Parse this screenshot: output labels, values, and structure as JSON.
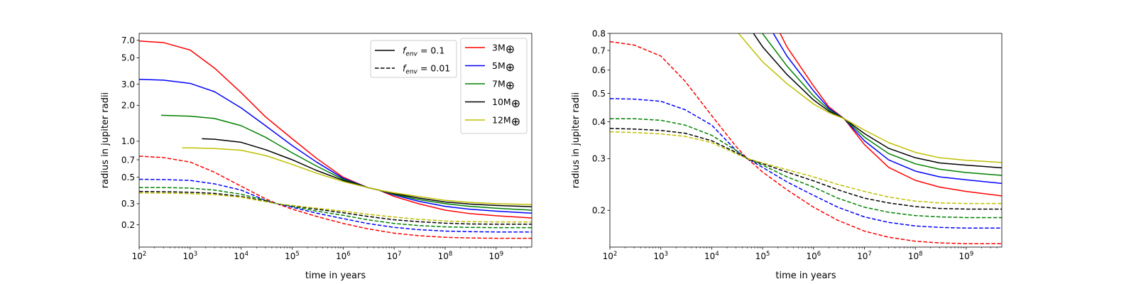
{
  "chart_data": [
    {
      "type": "line",
      "xlabel": "time in years",
      "ylabel": "radius in jupiter radii",
      "xscale": "log",
      "yscale": "log",
      "xlim": [
        100,
        5000000000
      ],
      "ylim": [
        0.13,
        8.0
      ],
      "xticks": [
        {
          "value": 100,
          "base": "10",
          "exp": "2"
        },
        {
          "value": 1000,
          "base": "10",
          "exp": "3"
        },
        {
          "value": 10000,
          "base": "10",
          "exp": "4"
        },
        {
          "value": 100000,
          "base": "10",
          "exp": "5"
        },
        {
          "value": 1000000,
          "base": "10",
          "exp": "6"
        },
        {
          "value": 10000000,
          "base": "10",
          "exp": "7"
        },
        {
          "value": 100000000,
          "base": "10",
          "exp": "8"
        },
        {
          "value": 1000000000,
          "base": "10",
          "exp": "9"
        }
      ],
      "yticks": [
        {
          "value": 7.0,
          "label": "7.0"
        },
        {
          "value": 5.0,
          "label": "5.0"
        },
        {
          "value": 3.0,
          "label": "3.0"
        },
        {
          "value": 2.0,
          "label": "2.0"
        },
        {
          "value": 1.0,
          "label": "1.0"
        },
        {
          "value": 0.7,
          "label": "0.7"
        },
        {
          "value": 0.5,
          "label": "0.5"
        },
        {
          "value": 0.3,
          "label": "0.3"
        },
        {
          "value": 0.2,
          "label": "0.2"
        }
      ],
      "legend_style": {
        "placement": "upper-middle-right",
        "entries": [
          {
            "name": "f_env = 0.1",
            "base": "f",
            "sub": "env",
            "rest": " = 0.1",
            "dash": "solid"
          },
          {
            "name": "f_env = 0.01",
            "base": "f",
            "sub": "env",
            "rest": " = 0.01",
            "dash": "dashed"
          }
        ]
      },
      "legend_mass": {
        "placement": "upper-right",
        "entries": [
          {
            "name": "3M⊕",
            "prefix": "3M",
            "symbol": "⊕",
            "color": "#ff0000"
          },
          {
            "name": "5M⊕",
            "prefix": "5M",
            "symbol": "⊕",
            "color": "#0000ff"
          },
          {
            "name": "7M⊕",
            "prefix": "7M",
            "symbol": "⊕",
            "color": "#008000"
          },
          {
            "name": "10M⊕",
            "prefix": "10M",
            "symbol": "⊕",
            "color": "#000000"
          },
          {
            "name": "12M⊕",
            "prefix": "12M",
            "symbol": "⊕",
            "color": "#bfbf00"
          }
        ]
      },
      "series": [
        {
          "color": "#ff0000",
          "dash": "solid",
          "x": [
            100,
            300,
            1000,
            3000,
            10000,
            30000,
            100000,
            300000,
            1000000,
            3000000,
            5000000,
            10000000,
            30000000,
            100000000,
            300000000,
            1000000000,
            5000000000
          ],
          "y": [
            6.9,
            6.7,
            5.8,
            4.1,
            2.55,
            1.6,
            1.05,
            0.72,
            0.5,
            0.41,
            0.39,
            0.345,
            0.3,
            0.265,
            0.248,
            0.238,
            0.228
          ]
        },
        {
          "color": "#0000ff",
          "dash": "solid",
          "x": [
            100,
            300,
            1000,
            3000,
            10000,
            30000,
            100000,
            300000,
            1000000,
            3000000,
            5000000,
            10000000,
            30000000,
            100000000,
            300000000,
            1000000000,
            5000000000
          ],
          "y": [
            3.3,
            3.25,
            3.05,
            2.6,
            1.9,
            1.35,
            0.92,
            0.67,
            0.49,
            0.41,
            0.39,
            0.355,
            0.315,
            0.285,
            0.27,
            0.26,
            0.25
          ]
        },
        {
          "color": "#008000",
          "dash": "solid",
          "x": [
            270,
            1000,
            3000,
            10000,
            30000,
            100000,
            300000,
            1000000,
            3000000,
            5000000,
            10000000,
            30000000,
            100000000,
            300000000,
            1000000000,
            5000000000
          ],
          "y": [
            1.65,
            1.62,
            1.55,
            1.35,
            1.08,
            0.8,
            0.62,
            0.48,
            0.41,
            0.39,
            0.36,
            0.325,
            0.3,
            0.285,
            0.275,
            0.265
          ]
        },
        {
          "color": "#000000",
          "dash": "solid",
          "x": [
            1700,
            3000,
            10000,
            30000,
            100000,
            300000,
            1000000,
            3000000,
            5000000,
            10000000,
            30000000,
            100000000,
            300000000,
            1000000000,
            5000000000
          ],
          "y": [
            1.05,
            1.04,
            0.98,
            0.85,
            0.7,
            0.57,
            0.47,
            0.41,
            0.39,
            0.365,
            0.335,
            0.31,
            0.298,
            0.29,
            0.283
          ]
        },
        {
          "color": "#bfbf00",
          "dash": "solid",
          "x": [
            700,
            1000,
            3000,
            10000,
            30000,
            100000,
            300000,
            1000000,
            3000000,
            5000000,
            10000000,
            30000000,
            100000000,
            300000000,
            1000000000,
            5000000000
          ],
          "y": [
            0.88,
            0.88,
            0.87,
            0.84,
            0.76,
            0.64,
            0.54,
            0.46,
            0.41,
            0.39,
            0.37,
            0.345,
            0.32,
            0.308,
            0.3,
            0.295
          ]
        },
        {
          "color": "#ff0000",
          "dash": "dashed",
          "x": [
            100,
            300,
            1000,
            3000,
            10000,
            30000,
            50000,
            100000,
            300000,
            1000000,
            3000000,
            10000000,
            30000000,
            100000000,
            300000000,
            1000000000,
            5000000000
          ],
          "y": [
            0.75,
            0.73,
            0.67,
            0.55,
            0.42,
            0.33,
            0.3,
            0.27,
            0.235,
            0.205,
            0.185,
            0.17,
            0.162,
            0.157,
            0.155,
            0.154,
            0.154
          ]
        },
        {
          "color": "#0000ff",
          "dash": "dashed",
          "x": [
            100,
            300,
            1000,
            3000,
            10000,
            30000,
            50000,
            100000,
            300000,
            1000000,
            3000000,
            10000000,
            30000000,
            100000000,
            300000000,
            1000000000,
            5000000000
          ],
          "y": [
            0.48,
            0.478,
            0.47,
            0.44,
            0.39,
            0.32,
            0.3,
            0.28,
            0.25,
            0.225,
            0.205,
            0.19,
            0.182,
            0.177,
            0.175,
            0.174,
            0.174
          ]
        },
        {
          "color": "#008000",
          "dash": "dashed",
          "x": [
            100,
            300,
            1000,
            3000,
            10000,
            30000,
            50000,
            100000,
            300000,
            1000000,
            3000000,
            10000000,
            30000000,
            100000000,
            300000000,
            1000000000,
            5000000000
          ],
          "y": [
            0.41,
            0.41,
            0.405,
            0.39,
            0.36,
            0.32,
            0.3,
            0.285,
            0.26,
            0.24,
            0.22,
            0.205,
            0.197,
            0.192,
            0.19,
            0.189,
            0.189
          ]
        },
        {
          "color": "#000000",
          "dash": "dashed",
          "x": [
            100,
            300,
            1000,
            3000,
            10000,
            30000,
            50000,
            100000,
            300000,
            1000000,
            3000000,
            10000000,
            30000000,
            100000000,
            300000000,
            1000000000,
            5000000000
          ],
          "y": [
            0.38,
            0.378,
            0.374,
            0.366,
            0.345,
            0.315,
            0.3,
            0.288,
            0.27,
            0.252,
            0.235,
            0.22,
            0.212,
            0.206,
            0.203,
            0.202,
            0.202
          ]
        },
        {
          "color": "#bfbf00",
          "dash": "dashed",
          "x": [
            100,
            300,
            1000,
            3000,
            10000,
            30000,
            50000,
            100000,
            300000,
            1000000,
            3000000,
            10000000,
            30000000,
            100000000,
            300000000,
            1000000000,
            5000000000
          ],
          "y": [
            0.37,
            0.368,
            0.364,
            0.357,
            0.34,
            0.312,
            0.3,
            0.29,
            0.275,
            0.26,
            0.245,
            0.232,
            0.222,
            0.215,
            0.212,
            0.211,
            0.211
          ]
        }
      ]
    },
    {
      "type": "line",
      "xlabel": "time in years",
      "ylabel": "radius in jupiter radii",
      "xscale": "log",
      "yscale": "log",
      "xlim": [
        100,
        5000000000
      ],
      "ylim": [
        0.15,
        0.8
      ],
      "xticks": [
        {
          "value": 100,
          "base": "10",
          "exp": "2"
        },
        {
          "value": 1000,
          "base": "10",
          "exp": "3"
        },
        {
          "value": 10000,
          "base": "10",
          "exp": "4"
        },
        {
          "value": 100000,
          "base": "10",
          "exp": "5"
        },
        {
          "value": 1000000,
          "base": "10",
          "exp": "6"
        },
        {
          "value": 10000000,
          "base": "10",
          "exp": "7"
        },
        {
          "value": 100000000,
          "base": "10",
          "exp": "8"
        },
        {
          "value": 1000000000,
          "base": "10",
          "exp": "9"
        }
      ],
      "yticks": [
        {
          "value": 0.8,
          "label": "0.8"
        },
        {
          "value": 0.7,
          "label": "0.7"
        },
        {
          "value": 0.6,
          "label": "0.6"
        },
        {
          "value": 0.5,
          "label": "0.5"
        },
        {
          "value": 0.4,
          "label": "0.4"
        },
        {
          "value": 0.3,
          "label": "0.3"
        },
        {
          "value": 0.2,
          "label": "0.2"
        }
      ],
      "series": [
        {
          "color": "#ff0000",
          "dash": "solid",
          "x": [
            100000,
            300000,
            1000000,
            2000000,
            4000000,
            10000000,
            30000000,
            100000000,
            300000000,
            1000000000,
            5000000000
          ],
          "y": [
            1.05,
            0.72,
            0.53,
            0.45,
            0.41,
            0.335,
            0.28,
            0.253,
            0.24,
            0.232,
            0.224
          ]
        },
        {
          "color": "#0000ff",
          "dash": "solid",
          "x": [
            100000,
            300000,
            1000000,
            2000000,
            4000000,
            10000000,
            30000000,
            100000000,
            300000000,
            1000000000,
            5000000000
          ],
          "y": [
            0.92,
            0.67,
            0.51,
            0.445,
            0.41,
            0.345,
            0.297,
            0.272,
            0.26,
            0.254,
            0.247
          ]
        },
        {
          "color": "#008000",
          "dash": "solid",
          "x": [
            80000,
            300000,
            1000000,
            2000000,
            4000000,
            10000000,
            30000000,
            100000000,
            300000000,
            1000000000,
            5000000000
          ],
          "y": [
            0.84,
            0.62,
            0.49,
            0.44,
            0.41,
            0.355,
            0.312,
            0.288,
            0.276,
            0.269,
            0.263
          ]
        },
        {
          "color": "#000000",
          "dash": "solid",
          "x": [
            60000,
            100000,
            300000,
            1000000,
            2000000,
            4000000,
            10000000,
            30000000,
            100000000,
            300000000,
            1000000000,
            5000000000
          ],
          "y": [
            0.82,
            0.72,
            0.58,
            0.475,
            0.435,
            0.41,
            0.365,
            0.325,
            0.302,
            0.29,
            0.285,
            0.279
          ]
        },
        {
          "color": "#bfbf00",
          "dash": "solid",
          "x": [
            30000,
            100000,
            300000,
            1000000,
            2000000,
            4000000,
            10000000,
            30000000,
            100000000,
            300000000,
            1000000000,
            5000000000
          ],
          "y": [
            0.82,
            0.64,
            0.54,
            0.46,
            0.43,
            0.41,
            0.375,
            0.34,
            0.315,
            0.302,
            0.296,
            0.291
          ]
        },
        {
          "color": "#ff0000",
          "dash": "dashed",
          "x": [
            100,
            300,
            1000,
            3000,
            10000,
            30000,
            50000,
            100000,
            300000,
            1000000,
            3000000,
            10000000,
            30000000,
            100000000,
            300000000,
            1000000000,
            5000000000
          ],
          "y": [
            0.75,
            0.73,
            0.67,
            0.55,
            0.42,
            0.33,
            0.3,
            0.27,
            0.235,
            0.205,
            0.185,
            0.17,
            0.162,
            0.157,
            0.155,
            0.154,
            0.154
          ]
        },
        {
          "color": "#0000ff",
          "dash": "dashed",
          "x": [
            100,
            300,
            1000,
            3000,
            10000,
            30000,
            50000,
            100000,
            300000,
            1000000,
            3000000,
            10000000,
            30000000,
            100000000,
            300000000,
            1000000000,
            5000000000
          ],
          "y": [
            0.48,
            0.478,
            0.47,
            0.44,
            0.39,
            0.32,
            0.3,
            0.28,
            0.25,
            0.225,
            0.205,
            0.19,
            0.182,
            0.177,
            0.175,
            0.174,
            0.174
          ]
        },
        {
          "color": "#008000",
          "dash": "dashed",
          "x": [
            100,
            300,
            1000,
            3000,
            10000,
            30000,
            50000,
            100000,
            300000,
            1000000,
            3000000,
            10000000,
            30000000,
            100000000,
            300000000,
            1000000000,
            5000000000
          ],
          "y": [
            0.41,
            0.41,
            0.405,
            0.39,
            0.36,
            0.32,
            0.3,
            0.285,
            0.26,
            0.24,
            0.22,
            0.205,
            0.197,
            0.192,
            0.19,
            0.189,
            0.189
          ]
        },
        {
          "color": "#000000",
          "dash": "dashed",
          "x": [
            100,
            300,
            1000,
            3000,
            10000,
            30000,
            50000,
            100000,
            300000,
            1000000,
            3000000,
            10000000,
            30000000,
            100000000,
            300000000,
            1000000000,
            5000000000
          ],
          "y": [
            0.38,
            0.378,
            0.374,
            0.366,
            0.345,
            0.315,
            0.3,
            0.288,
            0.27,
            0.252,
            0.235,
            0.22,
            0.212,
            0.206,
            0.203,
            0.202,
            0.202
          ]
        },
        {
          "color": "#bfbf00",
          "dash": "dashed",
          "x": [
            100,
            300,
            1000,
            3000,
            10000,
            30000,
            50000,
            100000,
            300000,
            1000000,
            3000000,
            10000000,
            30000000,
            100000000,
            300000000,
            1000000000,
            5000000000
          ],
          "y": [
            0.37,
            0.368,
            0.364,
            0.357,
            0.34,
            0.312,
            0.3,
            0.29,
            0.275,
            0.26,
            0.245,
            0.232,
            0.222,
            0.215,
            0.212,
            0.211,
            0.211
          ]
        }
      ]
    }
  ]
}
